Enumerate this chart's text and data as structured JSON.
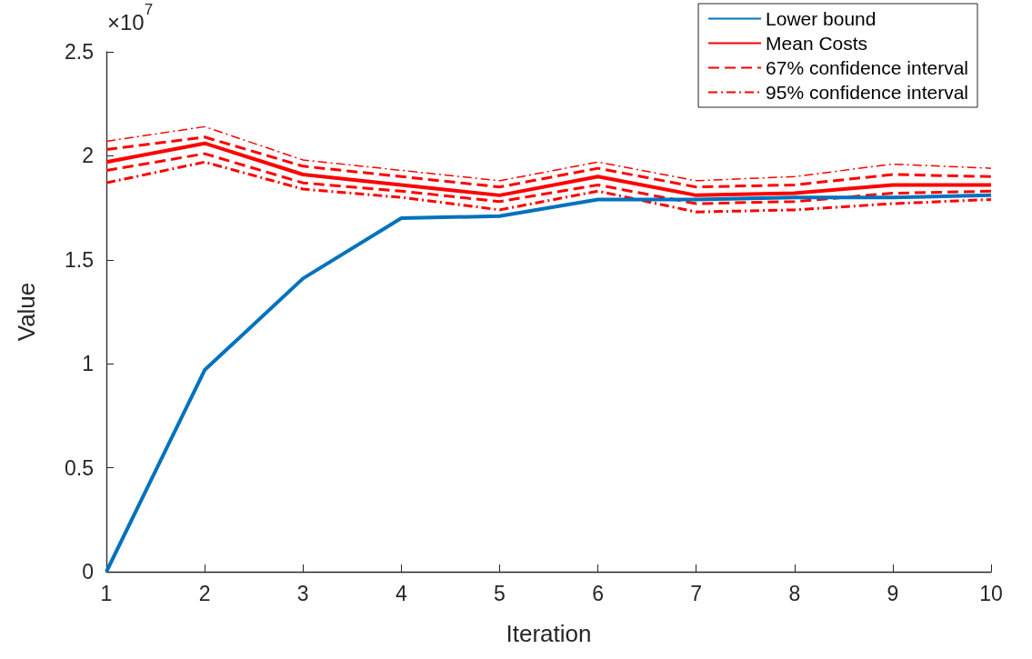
{
  "chart_data": {
    "type": "line",
    "xlabel": "Iteration",
    "ylabel": "Value",
    "annotations": [
      "×10$^{7}$"
    ],
    "x": [
      1,
      2,
      3,
      4,
      5,
      6,
      7,
      8,
      9,
      10
    ],
    "xlim": [
      1,
      10
    ],
    "xticks": [
      1,
      2,
      3,
      4,
      5,
      6,
      7,
      8,
      9,
      10
    ],
    "ylim": [
      0,
      2.5
    ],
    "yticks": [
      0,
      0.5,
      1,
      1.5,
      2,
      2.5
    ],
    "grid": false,
    "legend": "top right",
    "marker": "none",
    "series": [
      {
        "name": "Lower bound",
        "color": "#0072bd",
        "line_style": "solid",
        "values": [
          0,
          0.97,
          1.41,
          1.7,
          1.71,
          1.79,
          1.79,
          1.8,
          1.8,
          1.81
        ]
      },
      {
        "name": "Mean Costs",
        "color": "#ff0000",
        "line_style": "solid",
        "values": [
          1.97,
          2.06,
          1.91,
          1.86,
          1.81,
          1.9,
          1.81,
          1.82,
          1.86,
          1.86
        ]
      },
      {
        "name": "67% confidence interval",
        "color": "#ff0000",
        "line_style": "dashed",
        "values": [
          2.03,
          2.09,
          1.95,
          1.9,
          1.85,
          1.94,
          1.85,
          1.86,
          1.91,
          1.9
        ]
      },
      {
        "color": "#ff0000",
        "line_style": "dashed",
        "values": [
          1.93,
          2.01,
          1.87,
          1.83,
          1.78,
          1.86,
          1.77,
          1.78,
          1.82,
          1.83
        ]
      },
      {
        "name": "95% confidence interval",
        "color": "#ff0000",
        "line_style": "dashdot",
        "values": [
          2.07,
          2.14,
          1.98,
          1.93,
          1.88,
          1.97,
          1.88,
          1.9,
          1.96,
          1.94
        ]
      },
      {
        "color": "#ff0000",
        "line_style": "dashdot",
        "values": [
          1.87,
          1.97,
          1.84,
          1.8,
          1.74,
          1.83,
          1.73,
          1.74,
          1.77,
          1.79
        ]
      }
    ]
  }
}
